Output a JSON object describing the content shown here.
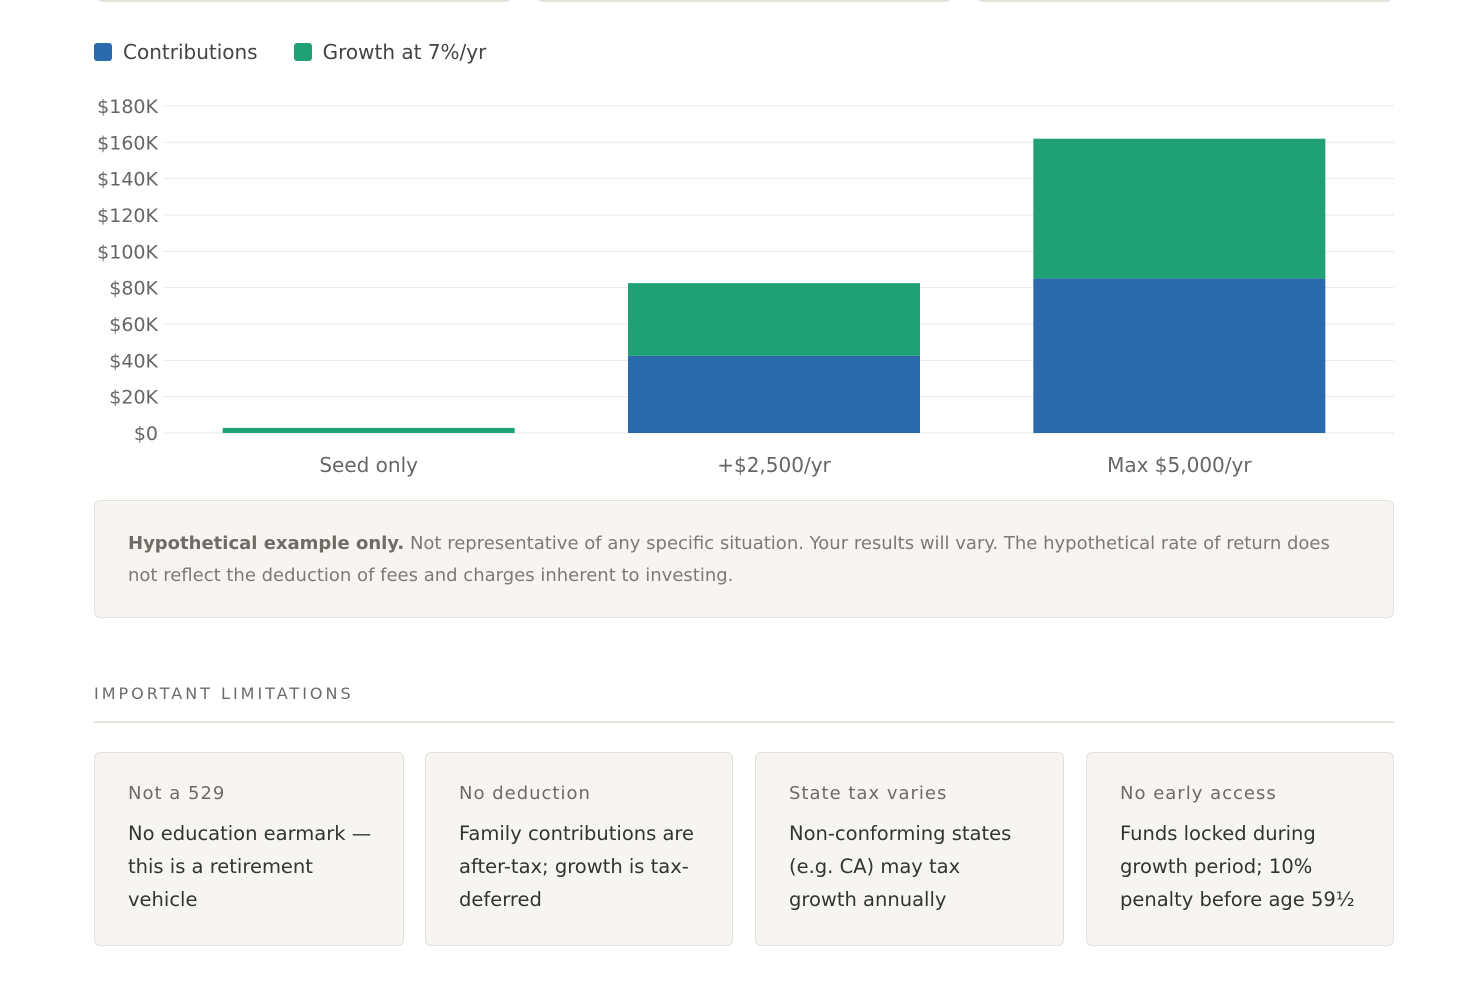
{
  "legend": {
    "contributions_label": "Contributions",
    "growth_label": "Growth at 7%/yr"
  },
  "colors": {
    "contributions": "#2b6bad",
    "growth": "#1fa075",
    "grid": "#e9e9e9",
    "tick_text": "#666666"
  },
  "chart_data": {
    "type": "bar",
    "stacked": true,
    "categories": [
      "Seed only",
      "+$2,500/yr",
      "Max $5,000/yr"
    ],
    "series": [
      {
        "name": "Contributions",
        "values": [
          0,
          42500,
          85000
        ]
      },
      {
        "name": "Growth at 7%/yr",
        "values": [
          2800,
          40000,
          77000
        ]
      }
    ],
    "y_ticks": [
      0,
      20000,
      40000,
      60000,
      80000,
      100000,
      120000,
      140000,
      160000,
      180000
    ],
    "y_tick_labels": [
      "$0",
      "$20K",
      "$40K",
      "$60K",
      "$80K",
      "$100K",
      "$120K",
      "$140K",
      "$160K",
      "$180K"
    ],
    "ylim": [
      0,
      180000
    ],
    "grid": true,
    "legend_position": "top-left"
  },
  "disclaimer": {
    "bold": "Hypothetical example only.",
    "text": " Not representative of any specific situation. Your results will vary. The hypothetical rate of return does not reflect the deduction of fees and charges inherent to investing."
  },
  "limitations": {
    "heading": "IMPORTANT LIMITATIONS",
    "cards": [
      {
        "title": "Not a 529",
        "body": "No education earmark — this is a retirement vehicle"
      },
      {
        "title": "No deduction",
        "body": "Family contributions are after-tax; growth is tax-deferred"
      },
      {
        "title": "State tax varies",
        "body": "Non-conforming states (e.g. CA) may tax growth annually"
      },
      {
        "title": "No early access",
        "body": "Funds locked during growth period; 10% penalty before age 59½"
      }
    ]
  }
}
